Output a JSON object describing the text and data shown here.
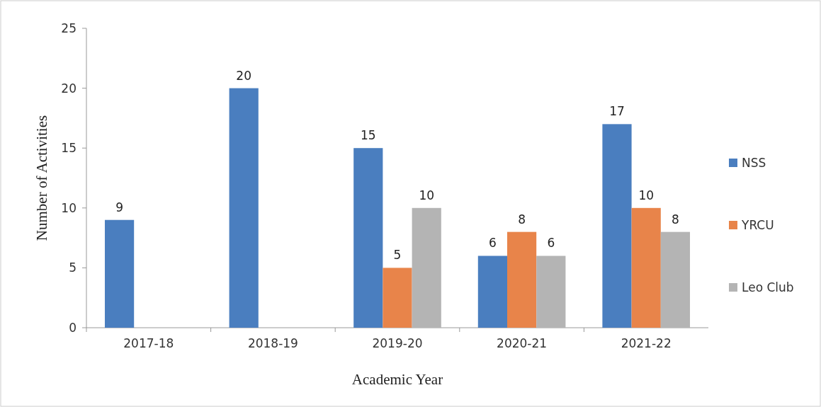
{
  "chart_data": {
    "type": "bar",
    "xlabel": "Academic Year",
    "ylabel": "Number of Activities",
    "categories": [
      "2017-18",
      "2018-19",
      "2019-20",
      "2020-21",
      "2021-22"
    ],
    "series": [
      {
        "name": "NSS",
        "color": "#4a7ebf",
        "values": [
          9,
          20,
          15,
          6,
          17
        ]
      },
      {
        "name": "YRCU",
        "color": "#e8844a",
        "values": [
          null,
          null,
          5,
          8,
          10
        ]
      },
      {
        "name": "Leo Club",
        "color": "#b4b4b4",
        "values": [
          null,
          null,
          10,
          6,
          8
        ]
      }
    ],
    "ylim": [
      0,
      25
    ],
    "yticks": [
      0,
      5,
      10,
      15,
      20,
      25
    ],
    "data_labels": true,
    "legend": "right"
  }
}
